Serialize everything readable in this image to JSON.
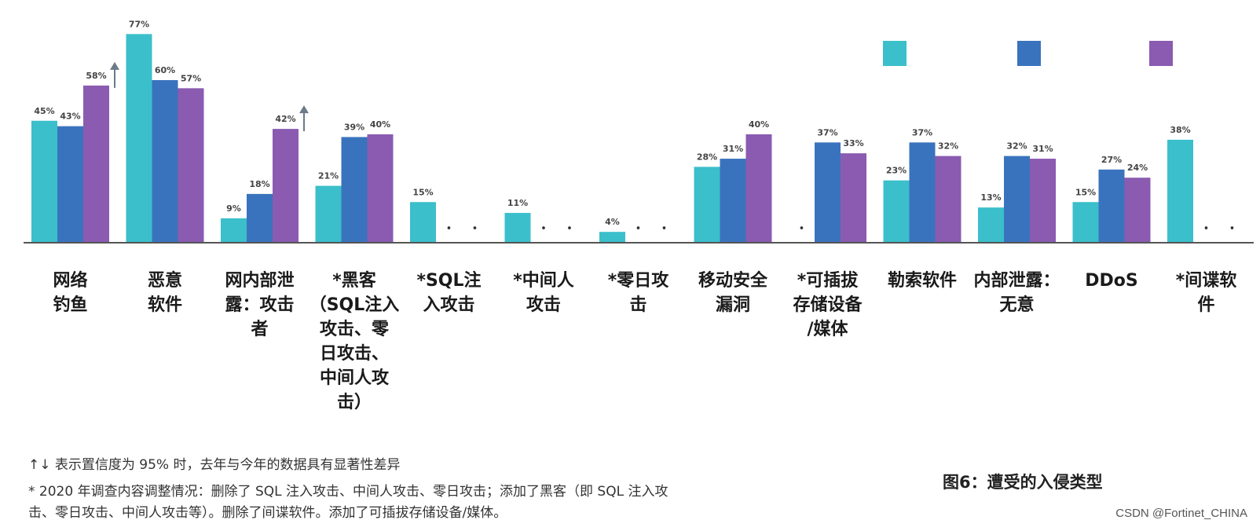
{
  "chart_data": {
    "type": "bar",
    "categories": [
      "网络\n钓鱼",
      "恶意\n软件",
      "网内部泄\n露：攻击\n者",
      "*黑客\n（SQL注入\n攻击、零\n日攻击、\n中间人攻\n击）",
      "*SQL注\n入攻击",
      "*中间人\n攻击",
      "*零日攻\n击",
      "移动安全\n漏洞",
      "*可插拔\n存储设备\n/媒体",
      "勒索软件",
      "内部泄露：\n无意",
      "DDoS",
      "*间谍软\n件"
    ],
    "series": [
      {
        "values": [
          45,
          77,
          9,
          21,
          15,
          11,
          4,
          28,
          null,
          23,
          13,
          15,
          38
        ]
      },
      {
        "values": [
          43,
          60,
          18,
          39,
          null,
          null,
          null,
          31,
          37,
          37,
          32,
          27,
          null
        ]
      },
      {
        "values": [
          58,
          57,
          42,
          40,
          null,
          null,
          null,
          40,
          33,
          32,
          31,
          24,
          null
        ]
      }
    ],
    "value_suffix": "%",
    "ylim": [
      0,
      80
    ],
    "grid": false,
    "missing_marker": "•",
    "significance_arrows": [
      {
        "category_index": 0,
        "series_index": 2,
        "direction": "up"
      },
      {
        "category_index": 2,
        "series_index": 2,
        "direction": "up"
      }
    ],
    "legend": {
      "position": "top-right",
      "labels": [
        "",
        "",
        ""
      ]
    }
  },
  "colors": {
    "series": [
      "#3bbfcb",
      "#3a73bd",
      "#8a5bb0"
    ],
    "axis": "#555555",
    "arrow": "#6c7a89",
    "text": "#1a1a1a"
  },
  "footnotes": {
    "significance": "↑↓ 表示置信度为 95% 时，去年与今年的数据具有显著性差异",
    "changes_line1": "* 2020 年调查内容调整情况：删除了 SQL 注入攻击、中间人攻击、零日攻击；添加了黑客（即 SQL 注入攻",
    "changes_line2": "击、零日攻击、中间人攻击等）。删除了间谍软件。添加了可插拔存储设备/媒体。"
  },
  "figure_caption": "图6：遭受的入侵类型",
  "watermark": "CSDN @Fortinet_CHINA"
}
